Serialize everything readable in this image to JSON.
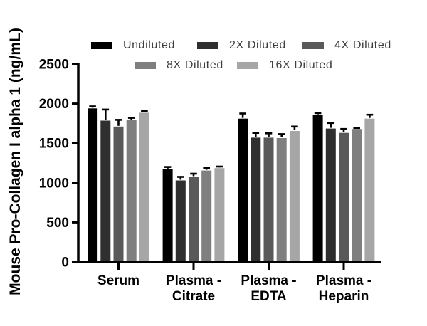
{
  "figure": {
    "background": "#ffffff"
  },
  "chart_data": {
    "type": "bar",
    "title": "",
    "xlabel": "",
    "ylabel": "Mouse Pro-Collagen I alpha 1 (ng/mL)",
    "ylim": [
      0,
      2500
    ],
    "yticks": [
      0,
      500,
      1000,
      1500,
      2000,
      2500
    ],
    "grid": false,
    "legend_position": "top",
    "error_bars": "upper",
    "error_color": "#000000",
    "axis_color": "#000000",
    "categories": [
      "Serum",
      "Plasma - Citrate",
      "Plasma - EDTA",
      "Plasma - Heparin"
    ],
    "series": [
      {
        "name": "Undiluted",
        "color": "#000000",
        "values": [
          1940,
          1170,
          1810,
          1855
        ],
        "errors_plus": [
          25,
          30,
          65,
          25
        ]
      },
      {
        "name": "2X Diluted",
        "color": "#2f2f2f",
        "values": [
          1785,
          1030,
          1570,
          1685
        ],
        "errors_plus": [
          140,
          45,
          60,
          70
        ]
      },
      {
        "name": "4X Diluted",
        "color": "#595959",
        "values": [
          1710,
          1075,
          1570,
          1630
        ],
        "errors_plus": [
          85,
          40,
          55,
          50
        ]
      },
      {
        "name": "8X Diluted",
        "color": "#7f7f7f",
        "values": [
          1790,
          1155,
          1565,
          1680
        ],
        "errors_plus": [
          30,
          30,
          50,
          12
        ]
      },
      {
        "name": "16X Diluted",
        "color": "#a6a6a6",
        "values": [
          1885,
          1185,
          1655,
          1810
        ],
        "errors_plus": [
          20,
          20,
          55,
          50
        ]
      }
    ]
  }
}
